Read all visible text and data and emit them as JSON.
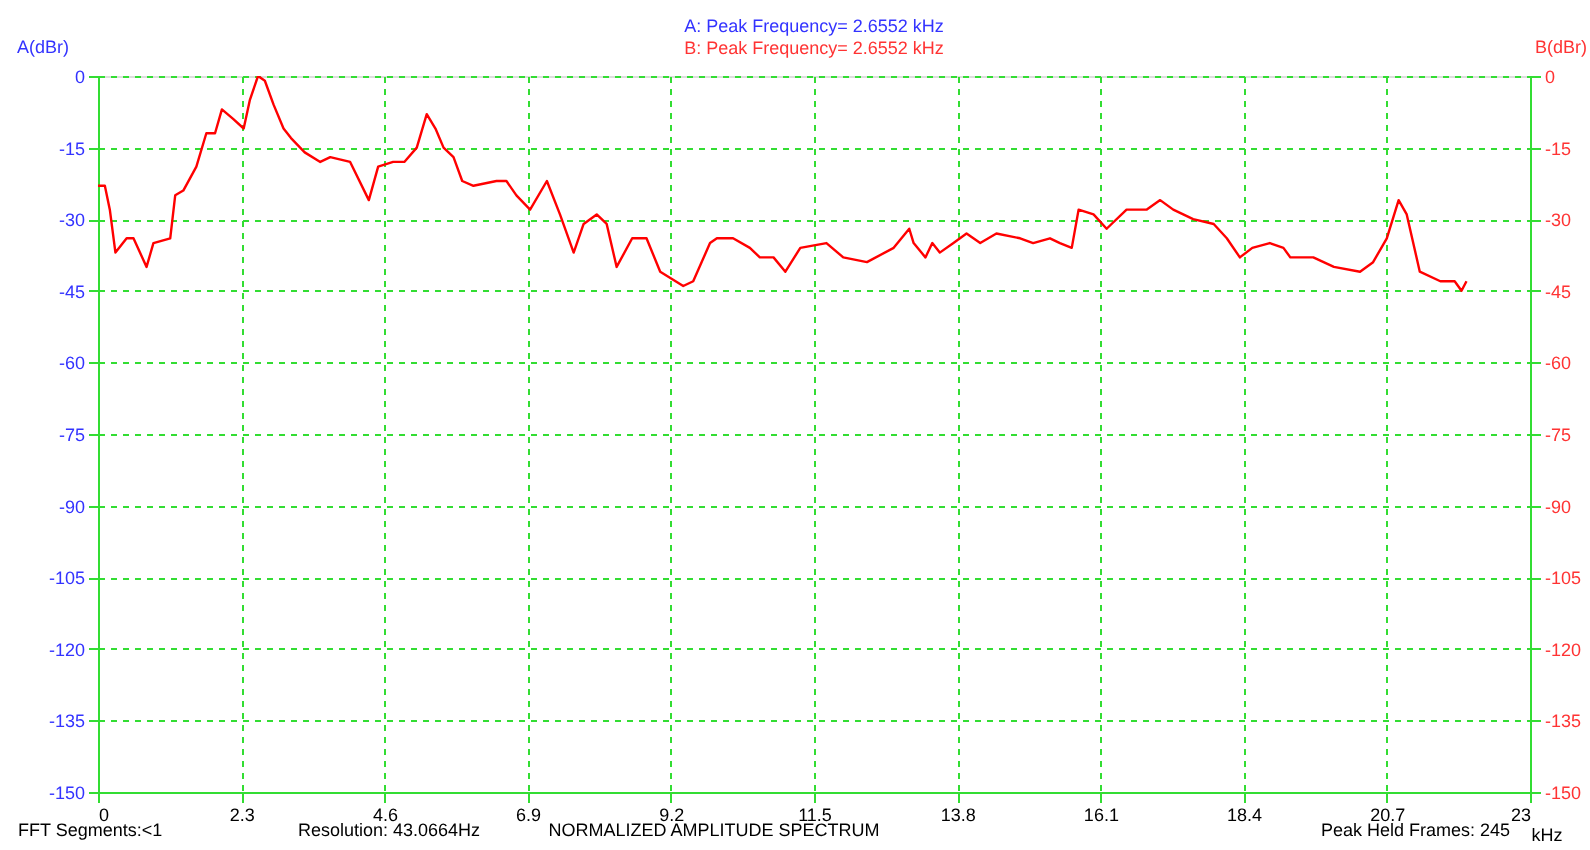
{
  "chart_data": {
    "type": "line",
    "title": "A: Peak Frequency=  2.6552  kHz",
    "subtitle": "B: Peak Frequency=  2.6552  kHz",
    "ylabel": "A(dBr)",
    "y2label": "B(dBr)",
    "xlabel": "kHz",
    "annotations": [
      "FFT Segments:<1",
      "Resolution: 43.0664Hz",
      "NORMALIZED AMPLITUDE SPECTRUM",
      "Peak Held Frames: 245"
    ],
    "xlim": [
      0,
      23
    ],
    "xticks": [
      0,
      2.3,
      4.6,
      6.9,
      9.2,
      11.5,
      13.8,
      16.1,
      18.4,
      20.7,
      23
    ],
    "ylim": [
      -150,
      0
    ],
    "yticks": [
      0,
      -15,
      -30,
      -45,
      -60,
      -75,
      -90,
      -105,
      -120,
      -135,
      -150
    ],
    "y2lim": [
      -150,
      0
    ],
    "y2ticks": [
      0,
      -15,
      -30,
      -45,
      -60,
      -75,
      -90,
      -105,
      -120,
      -135,
      -150
    ],
    "grid": true,
    "marker": "none",
    "line_style": "solid",
    "series": [
      {
        "color": "#ff0000",
        "x": [
          0,
          0.11,
          0.19,
          0.28,
          0.46,
          0.57,
          0.78,
          0.89,
          1.16,
          1.24,
          1.37,
          1.58,
          1.74,
          1.88,
          1.99,
          2.17,
          2.34,
          2.44,
          2.57,
          2.68,
          2.82,
          2.98,
          3.1,
          3.32,
          3.57,
          3.73,
          4.05,
          4.35,
          4.5,
          4.74,
          4.92,
          5.12,
          5.28,
          5.42,
          5.55,
          5.71,
          5.85,
          6.03,
          6.4,
          6.56,
          6.72,
          6.94,
          7.21,
          7.42,
          7.64,
          7.8,
          8.01,
          8.17,
          8.33,
          8.58,
          8.81,
          9.03,
          9.4,
          9.56,
          9.83,
          9.94,
          10.2,
          10.47,
          10.63,
          10.85,
          11.04,
          11.28,
          11.7,
          11.97,
          12.35,
          12.78,
          13.03,
          13.1,
          13.29,
          13.4,
          13.52,
          13.74,
          13.95,
          14.17,
          14.43,
          14.81,
          15.02,
          15.29,
          15.45,
          15.64,
          15.75,
          15.99,
          16.2,
          16.52,
          16.84,
          17.06,
          17.27,
          17.59,
          17.92,
          18.13,
          18.34,
          18.54,
          18.82,
          19.04,
          19.15,
          19.52,
          19.85,
          20.27,
          20.48,
          20.7,
          20.89,
          21.02,
          21.23,
          21.56,
          21.79,
          21.9,
          21.98
        ],
        "values": [
          -23,
          -23,
          -28,
          -37,
          -34,
          -34,
          -40,
          -35,
          -34,
          -25,
          -24,
          -19,
          -12,
          -12,
          -7,
          -9,
          -11,
          -5,
          0,
          -1,
          -6,
          -11,
          -13,
          -16,
          -18,
          -17,
          -18,
          -26,
          -19,
          -18,
          -18,
          -15,
          -8,
          -11,
          -15,
          -17,
          -22,
          -23,
          -22,
          -22,
          -25,
          -28,
          -22,
          -29,
          -37,
          -31,
          -29,
          -31,
          -40,
          -34,
          -34,
          -41,
          -44,
          -43,
          -35,
          -34,
          -34,
          -36,
          -38,
          -38,
          -41,
          -36,
          -35,
          -38,
          -39,
          -36,
          -32,
          -35,
          -38,
          -35,
          -37,
          -35,
          -33,
          -35,
          -33,
          -34,
          -35,
          -34,
          -35,
          -36,
          -28,
          -29,
          -32,
          -28,
          -28,
          -26,
          -28,
          -30,
          -31,
          -34,
          -38,
          -36,
          -35,
          -36,
          -38,
          -38,
          -40,
          -41,
          -39,
          -34,
          -26,
          -29,
          -41,
          -43,
          -43,
          -45,
          -43
        ]
      }
    ]
  }
}
